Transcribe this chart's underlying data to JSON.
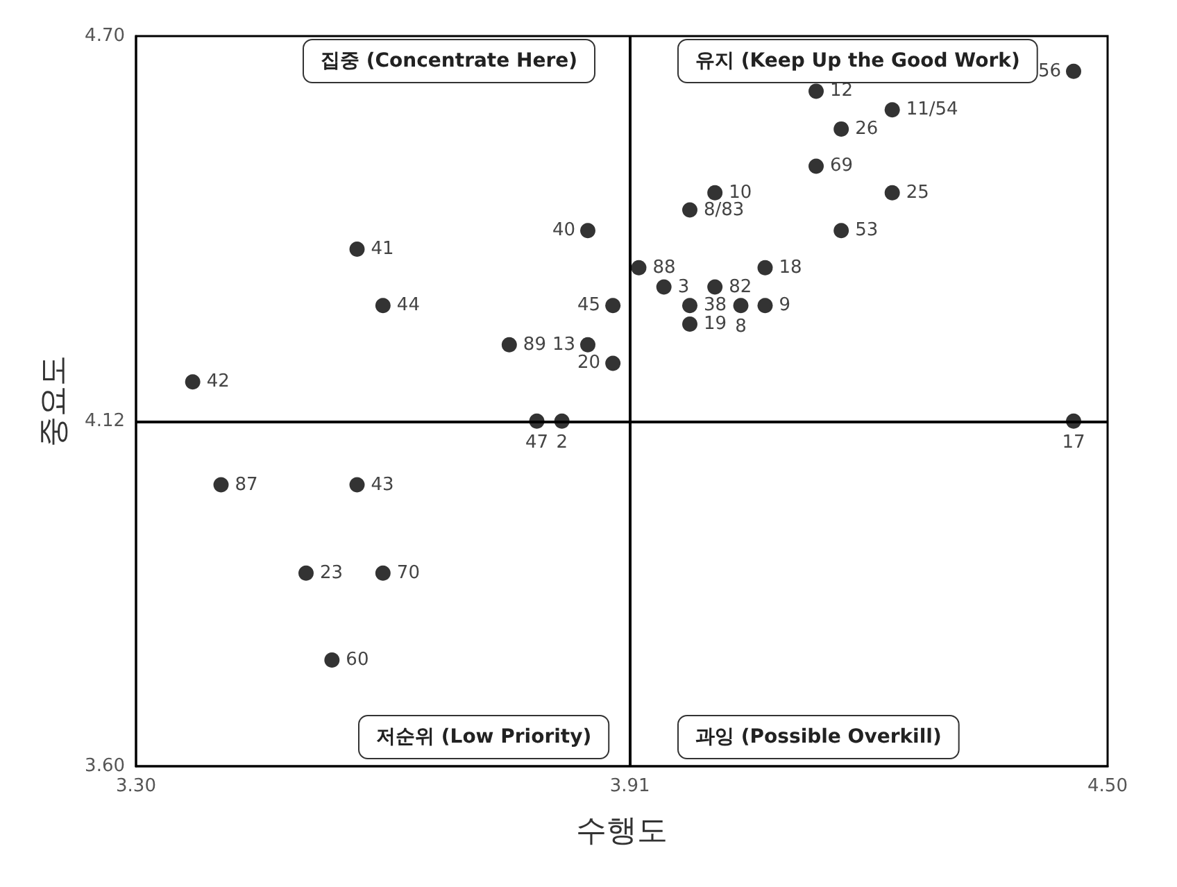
{
  "chart_data": {
    "type": "scatter",
    "xlabel": "수행도",
    "ylabel": "중요도",
    "x": [
      3.37,
      3.405,
      3.573,
      3.51,
      3.605,
      3.542,
      3.573,
      3.605,
      3.761,
      3.858,
      3.889,
      3.858,
      3.889,
      3.795,
      3.826,
      3.921,
      3.952,
      4.015,
      3.984,
      4.047,
      4.077,
      3.984,
      4.077,
      4.015,
      3.984,
      4.14,
      4.234,
      4.171,
      4.14,
      4.234,
      4.171,
      4.458,
      4.458
    ],
    "values": [
      4.179,
      4.024,
      4.024,
      3.891,
      3.891,
      3.76,
      4.379,
      4.294,
      4.235,
      4.407,
      4.294,
      4.235,
      4.207,
      4.12,
      4.12,
      4.351,
      4.322,
      4.322,
      4.294,
      4.294,
      4.294,
      4.266,
      4.351,
      4.464,
      4.438,
      4.617,
      4.589,
      4.56,
      4.504,
      4.464,
      4.407,
      4.647,
      4.12
    ],
    "color": "#000000",
    "marker": "circle",
    "xlim": [
      3.3,
      4.5
    ],
    "xticks": [
      {
        "value": 3.3,
        "label": "3.30"
      },
      {
        "value": 3.91,
        "label": "3.91"
      },
      {
        "value": 4.5,
        "label": "4.50"
      }
    ],
    "ylim": [
      3.6,
      4.7
    ],
    "yticks": [
      {
        "value": 3.6,
        "label": "3.60"
      },
      {
        "value": 4.12,
        "label": "4.12"
      },
      {
        "value": 4.7,
        "label": "4.70"
      }
    ],
    "ref_lines": [
      {
        "axis": "x",
        "value": 3.91,
        "color": "#000000"
      },
      {
        "axis": "y",
        "value": 4.12,
        "color": "#000000"
      }
    ],
    "annotations": [
      "집중 (Concentrate Here)",
      "유지 (Keep Up the Good Work)",
      "저순위 (Low Priority)",
      "과잉 (Possible Overkill)",
      {
        "text": "42",
        "x": 3.37,
        "y": 4.179
      },
      {
        "text": "87",
        "x": 3.405,
        "y": 4.024
      },
      {
        "text": "43",
        "x": 3.573,
        "y": 4.024
      },
      {
        "text": "23",
        "x": 3.51,
        "y": 3.891
      },
      {
        "text": "70",
        "x": 3.605,
        "y": 3.891
      },
      {
        "text": "60",
        "x": 3.542,
        "y": 3.76
      },
      {
        "text": "41",
        "x": 3.573,
        "y": 4.379
      },
      {
        "text": "44",
        "x": 3.605,
        "y": 4.294
      },
      {
        "text": "89",
        "x": 3.761,
        "y": 4.235
      },
      {
        "text": "40",
        "x": 3.858,
        "y": 4.407
      },
      {
        "text": "45",
        "x": 3.889,
        "y": 4.294
      },
      {
        "text": "13",
        "x": 3.858,
        "y": 4.235
      },
      {
        "text": "20",
        "x": 3.889,
        "y": 4.207
      },
      {
        "text": "47",
        "x": 3.795,
        "y": 4.12
      },
      {
        "text": "2",
        "x": 3.826,
        "y": 4.12
      },
      {
        "text": "88",
        "x": 3.921,
        "y": 4.351
      },
      {
        "text": "3",
        "x": 3.952,
        "y": 4.322
      },
      {
        "text": "82",
        "x": 4.015,
        "y": 4.322
      },
      {
        "text": "38",
        "x": 3.984,
        "y": 4.294
      },
      {
        "text": "8",
        "x": 4.047,
        "y": 4.294
      },
      {
        "text": "9",
        "x": 4.077,
        "y": 4.294
      },
      {
        "text": "19",
        "x": 3.984,
        "y": 4.266
      },
      {
        "text": "18",
        "x": 4.077,
        "y": 4.351
      },
      {
        "text": "10",
        "x": 4.015,
        "y": 4.464
      },
      {
        "text": "8/83",
        "x": 3.984,
        "y": 4.438
      },
      {
        "text": "12",
        "x": 4.14,
        "y": 4.617
      },
      {
        "text": "11/54",
        "x": 4.234,
        "y": 4.589
      },
      {
        "text": "26",
        "x": 4.171,
        "y": 4.56
      },
      {
        "text": "69",
        "x": 4.14,
        "y": 4.504
      },
      {
        "text": "25",
        "x": 4.234,
        "y": 4.464
      },
      {
        "text": "53",
        "x": 4.171,
        "y": 4.407
      },
      {
        "text": "56",
        "x": 4.458,
        "y": 4.647
      },
      {
        "text": "17",
        "x": 4.458,
        "y": 4.12
      }
    ]
  }
}
